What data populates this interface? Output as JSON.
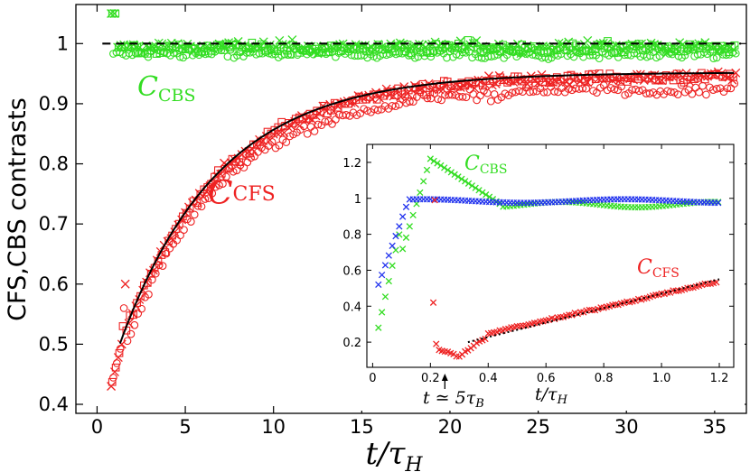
{
  "chart_data": [
    {
      "id": "main",
      "type": "scatter",
      "xlabel": "t/τ_H",
      "xlabel_main": "t/τ",
      "xlabel_sub": "H",
      "ylabel": "CFS,CBS contrasts",
      "xlim": [
        -1.2,
        36.8
      ],
      "ylim": [
        0.385,
        1.065
      ],
      "xticks": [
        0,
        5,
        10,
        15,
        20,
        25,
        30,
        35
      ],
      "yticks": [
        0.4,
        0.5,
        0.6,
        0.7,
        0.8,
        0.9,
        1.0
      ],
      "xtick_labels": [
        "0",
        "5",
        "10",
        "15",
        "20",
        "25",
        "30",
        "35"
      ],
      "ytick_labels": [
        "0.4",
        "0.5",
        "0.6",
        "0.7",
        "0.8",
        "0.9",
        "1"
      ],
      "reference_line": {
        "y": 1.0,
        "style": "dashed",
        "color": "#000000"
      },
      "fit_curve": {
        "color": "#000000",
        "formula": "0.952 - 0.52*exp(-(x-0.5)/5.6)",
        "x_range": [
          1.3,
          36.2
        ]
      },
      "series": [
        {
          "name": "C_CBS (×)",
          "color": "#33dd22",
          "marker": "x",
          "mean": 0.995,
          "noise": 0.018,
          "x_start": 0.8,
          "x_end": 36.2
        },
        {
          "name": "C_CBS (□)",
          "color": "#33dd22",
          "marker": "square",
          "mean": 0.992,
          "noise": 0.02,
          "x_start": 0.8,
          "x_end": 36.2
        },
        {
          "name": "C_CBS (○)",
          "color": "#33dd22",
          "marker": "circle",
          "mean": 0.982,
          "noise": 0.016,
          "x_start": 0.8,
          "x_end": 36.2
        },
        {
          "name": "C_CFS (×)",
          "color": "#ee2222",
          "marker": "x",
          "start": 0.44,
          "x_start": 0.8,
          "x_end": 36.2
        },
        {
          "name": "C_CFS (□)",
          "color": "#ee2222",
          "marker": "square",
          "start": 0.43,
          "x_start": 0.8,
          "x_end": 36.2
        },
        {
          "name": "C_CFS (○)",
          "color": "#ee2222",
          "marker": "circle",
          "start": 0.43,
          "x_start": 0.8,
          "x_end": 36.2
        }
      ],
      "annotations": [
        {
          "text_main": "C",
          "text_sub": "CBS",
          "color": "#33dd22"
        },
        {
          "text_main": "C",
          "text_sub": "CFS",
          "color": "#ee2222"
        }
      ]
    },
    {
      "id": "inset",
      "type": "scatter",
      "xlim": [
        -0.02,
        1.25
      ],
      "ylim": [
        0.06,
        1.3
      ],
      "xticks": [
        0,
        0.2,
        0.4,
        0.6,
        0.8,
        1.0,
        1.2
      ],
      "yticks": [
        0.2,
        0.4,
        0.6,
        0.8,
        1.0,
        1.2
      ],
      "xtick_labels": [
        "0",
        "0.2",
        "0.4",
        "0.6",
        "0.8",
        "1.0",
        "1.2"
      ],
      "ytick_labels": [
        "0.2",
        "0.4",
        "0.6",
        "0.8",
        "1",
        "1.2"
      ],
      "series": [
        {
          "name": "C_CBS green",
          "color": "#33dd22",
          "marker": "x",
          "peak_x": 0.2,
          "peak_y": 1.22,
          "x_start": 0.02,
          "x_end": 1.2
        },
        {
          "name": "C_CBS blue",
          "color": "#2233ee",
          "marker": "x",
          "plateau_y": 0.99,
          "x_start": 0.02,
          "x_end": 1.2
        },
        {
          "name": "C_CFS red",
          "color": "#ee2222",
          "marker": "x",
          "min_x": 0.25,
          "min_y": 0.12,
          "x_start": 0.21,
          "x_end": 1.2,
          "outliers": [
            [
              0.21,
              0.42
            ],
            [
              0.22,
              0.19
            ],
            [
              0.215,
              0.99
            ]
          ]
        }
      ],
      "fit_line": {
        "color": "#000000",
        "style": "dotted",
        "x_range": [
          0.33,
          1.2
        ],
        "y_range": [
          0.2,
          0.55
        ]
      },
      "annotations": [
        {
          "text_main": "C",
          "text_sub": "CBS",
          "color": "#33dd22"
        },
        {
          "text_main": "C",
          "text_sub": "CFS",
          "color": "#ee2222"
        }
      ],
      "arrow_label": {
        "prefix": "t ≃ 5τ",
        "sub": "B",
        "x": 0.25
      },
      "xlabel_main": "t/τ",
      "xlabel_sub": "H"
    }
  ]
}
